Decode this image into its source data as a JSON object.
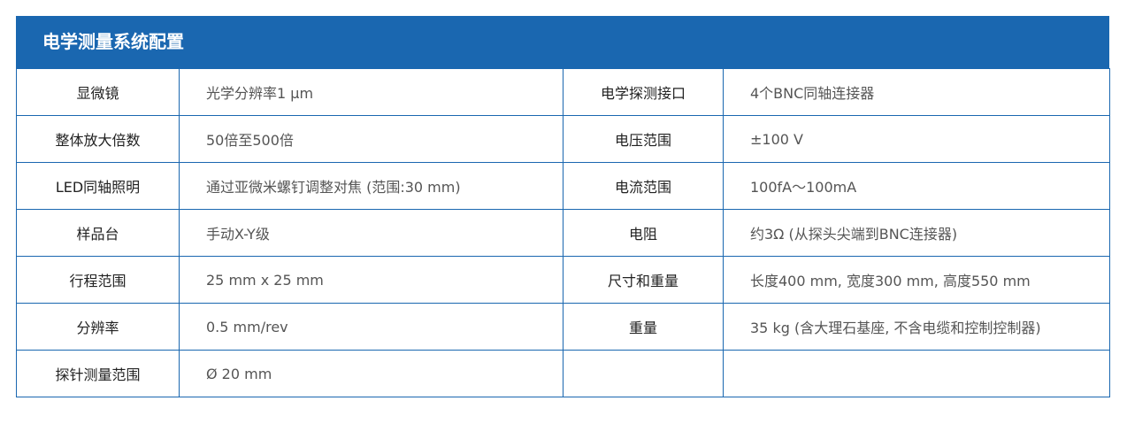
{
  "title": "电学测量系统配置",
  "colors": {
    "header": "#1a67b0",
    "border": "#1a67b0"
  },
  "rows": [
    {
      "k1": "显微镜",
      "v1": "光学分辨率1 µm",
      "k2": "电学探测接口",
      "v2": "4个BNC同轴连接器"
    },
    {
      "k1": "整体放大倍数",
      "v1": "50倍至500倍",
      "k2": "电压范围",
      "v2": "±100 V"
    },
    {
      "k1": "LED同轴照明",
      "v1": "通过亚微米螺钉调整对焦 (范围:30 mm)",
      "k2": "电流范围",
      "v2": "100fA～100mA"
    },
    {
      "k1": "样品台",
      "v1": "手动X-Y级",
      "k2": "电阻",
      "v2": "约3Ω (从探头尖端到BNC连接器)"
    },
    {
      "k1": "行程范围",
      "v1": "25 mm x 25 mm",
      "k2": "尺寸和重量",
      "v2": "长度400 mm, 宽度300 mm, 高度550 mm"
    },
    {
      "k1": "分辨率",
      "v1": "0.5 mm/rev",
      "k2": "重量",
      "v2": "35 kg (含大理石基座, 不含电缆和控制控制器)"
    },
    {
      "k1": "探针测量范围",
      "v1": "Ø 20 mm",
      "k2": "",
      "v2": ""
    }
  ]
}
